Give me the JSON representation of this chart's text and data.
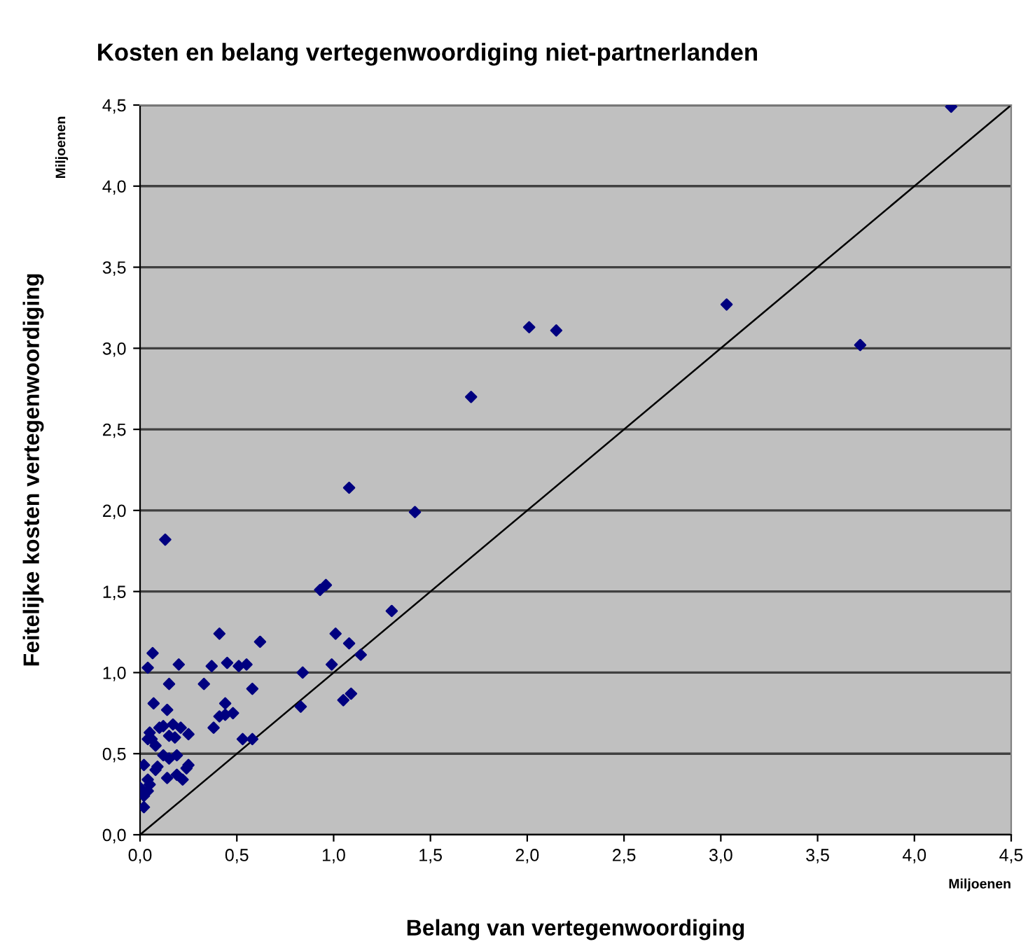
{
  "chart_data": {
    "type": "scatter",
    "title": "Kosten en belang vertegenwoordiging niet-partnerlanden",
    "xlabel": "Belang van vertegenwoordiging",
    "ylabel": "Feitelijke kosten vertegenwoordiging",
    "annotations": [
      "Miljoenen",
      "Miljoenen"
    ],
    "xlim": [
      0,
      4.5
    ],
    "ylim": [
      0,
      4.5
    ],
    "xticks": [
      {
        "value": 0,
        "label": "0,0"
      },
      {
        "value": 0.5,
        "label": "0,5"
      },
      {
        "value": 1,
        "label": "1,0"
      },
      {
        "value": 1.5,
        "label": "1,5"
      },
      {
        "value": 2,
        "label": "2,0"
      },
      {
        "value": 2.5,
        "label": "2,5"
      },
      {
        "value": 3,
        "label": "3,0"
      },
      {
        "value": 3.5,
        "label": "3,5"
      },
      {
        "value": 4,
        "label": "4,0"
      },
      {
        "value": 4.5,
        "label": "4,5"
      }
    ],
    "yticks": [
      {
        "value": 0,
        "label": "0,0"
      },
      {
        "value": 0.5,
        "label": "0,5"
      },
      {
        "value": 1,
        "label": "1,0"
      },
      {
        "value": 1.5,
        "label": "1,5"
      },
      {
        "value": 2,
        "label": "2,0"
      },
      {
        "value": 2.5,
        "label": "2,5"
      },
      {
        "value": 3,
        "label": "3,0"
      },
      {
        "value": 3.5,
        "label": "3,5"
      },
      {
        "value": 4,
        "label": "4,0"
      },
      {
        "value": 4.5,
        "label": "4,5"
      }
    ],
    "grid": "y",
    "legend": false,
    "series": [
      {
        "type": "scatter",
        "color": "#000080",
        "marker": "diamond",
        "x": [
          4.19,
          3.03,
          3.72,
          2.01,
          2.15,
          1.71,
          1.08,
          1.42,
          0.13,
          0.93,
          0.96,
          0.065,
          0.04,
          0.2,
          0.41,
          0.62,
          0.37,
          0.45,
          0.51,
          0.55,
          0.15,
          0.33,
          0.58,
          0.84,
          0.99,
          1.01,
          1.08,
          1.14,
          1.3,
          1.05,
          1.09,
          0.83,
          0.07,
          0.14,
          0.44,
          0.48,
          0.41,
          0.38,
          0.44,
          0.53,
          0.58,
          0.25,
          0.21,
          0.17,
          0.12,
          0.1,
          0.05,
          0.06,
          0.08,
          0.04,
          0.15,
          0.18,
          0.02,
          0.12,
          0.15,
          0.19,
          0.09,
          0.08,
          0.14,
          0.19,
          0.22,
          0.25,
          0.24,
          0.0,
          0.04,
          0.05,
          0.04,
          0.02,
          0.02
        ],
        "values": [
          4.49,
          3.27,
          3.02,
          3.13,
          3.11,
          2.7,
          2.14,
          1.99,
          1.82,
          1.51,
          1.54,
          1.12,
          1.03,
          1.05,
          1.24,
          1.19,
          1.04,
          1.06,
          1.04,
          1.05,
          0.93,
          0.93,
          0.9,
          1.0,
          1.05,
          1.24,
          1.18,
          1.11,
          1.38,
          0.83,
          0.87,
          0.79,
          0.81,
          0.77,
          0.81,
          0.75,
          0.73,
          0.66,
          0.74,
          0.59,
          0.59,
          0.62,
          0.66,
          0.68,
          0.67,
          0.66,
          0.63,
          0.59,
          0.55,
          0.59,
          0.61,
          0.6,
          0.43,
          0.49,
          0.47,
          0.49,
          0.42,
          0.4,
          0.35,
          0.37,
          0.34,
          0.43,
          0.41,
          0.29,
          0.34,
          0.31,
          0.27,
          0.24,
          0.17
        ]
      },
      {
        "type": "line",
        "color": "#000000",
        "marker": "none",
        "line_style": "solid",
        "x": [
          0,
          4.5
        ],
        "values": [
          0,
          4.5
        ]
      }
    ]
  }
}
